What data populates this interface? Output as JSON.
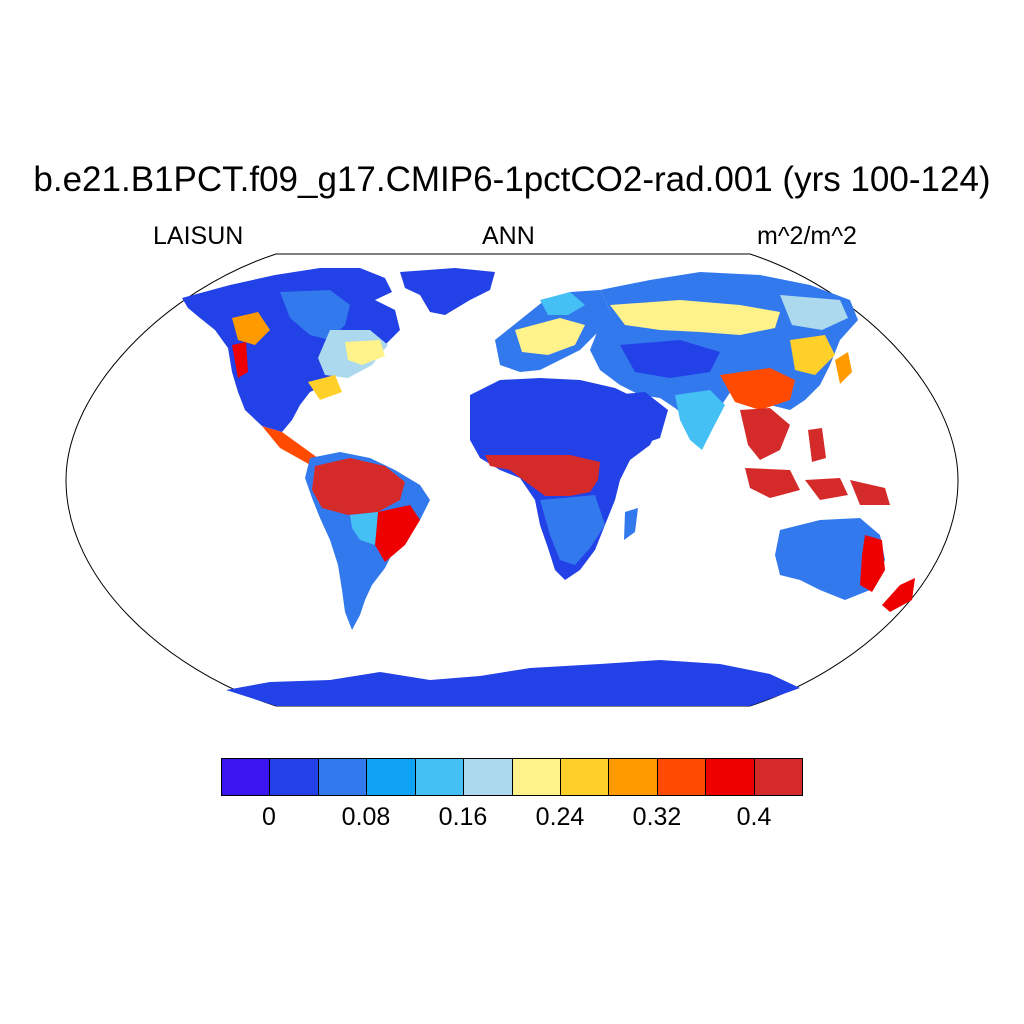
{
  "title": "b.e21.B1PCT.f09_g17.CMIP6-1pctCO2-rad.001 (yrs 100-124)",
  "subtitles": {
    "variable": "LAISUN",
    "season": "ANN",
    "units": "m^2/m^2"
  },
  "colorbar": {
    "colors": [
      "#3b14f2",
      "#2241e6",
      "#3279ee",
      "#10a2f5",
      "#45c0f5",
      "#acd9ee",
      "#fff28b",
      "#ffd02a",
      "#ff9a00",
      "#ff4a00",
      "#ee0000",
      "#d52a2a"
    ],
    "labels": [
      "0",
      "0.08",
      "0.16",
      "0.24",
      "0.32",
      "0.4"
    ]
  },
  "map": {
    "projection": "robinson",
    "ocean_color": "#ffffff",
    "outline_color": "#000000"
  }
}
